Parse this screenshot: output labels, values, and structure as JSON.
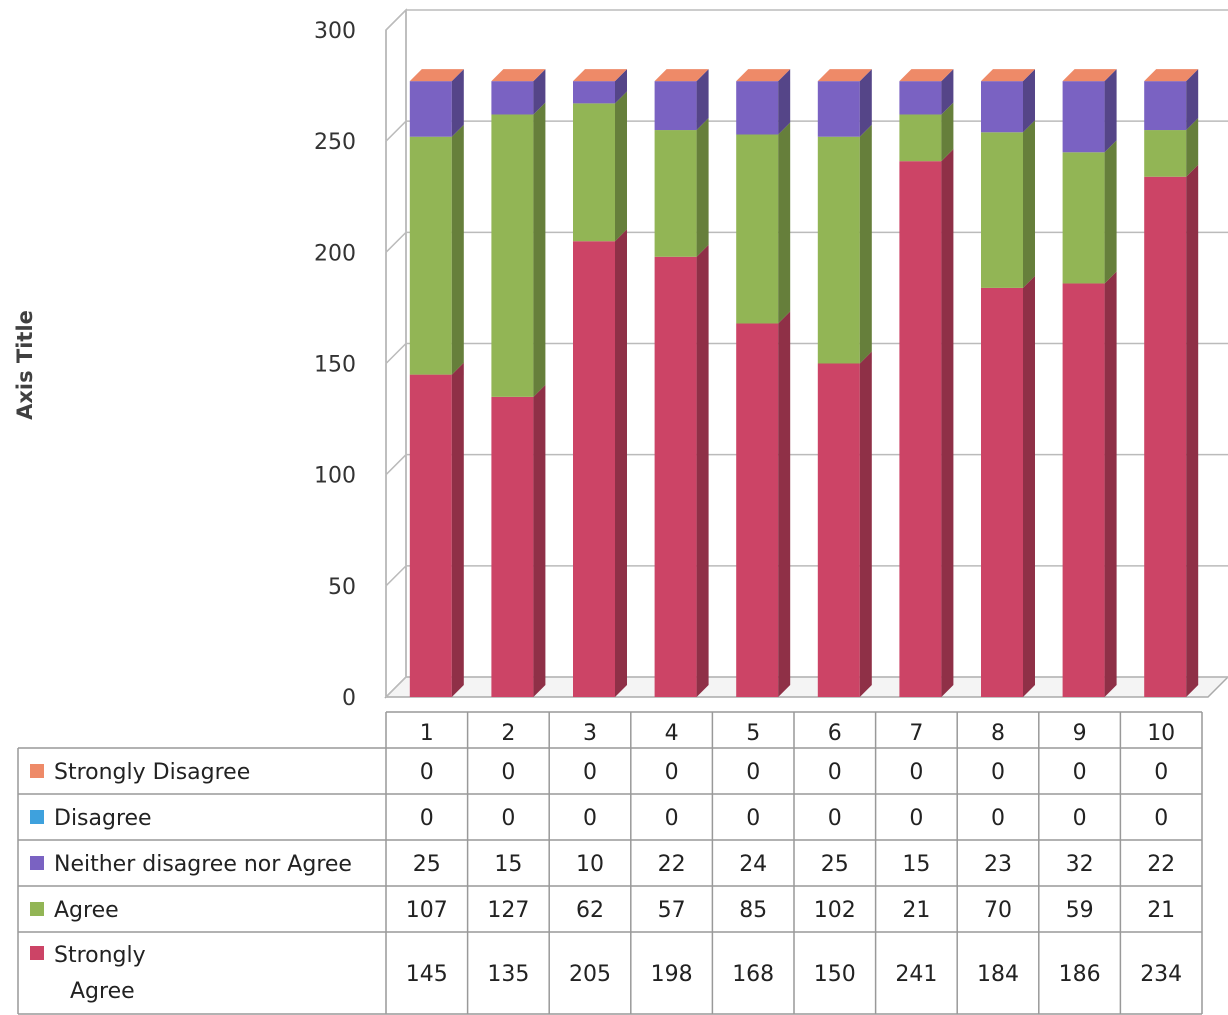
{
  "chart_data": {
    "type": "bar",
    "stacked": true,
    "three_d": true,
    "ylabel": "Axis Title",
    "ylim": [
      0,
      300
    ],
    "yticks": [
      0,
      50,
      100,
      150,
      200,
      250,
      300
    ],
    "categories": [
      "1",
      "2",
      "3",
      "4",
      "5",
      "6",
      "7",
      "8",
      "9",
      "10"
    ],
    "series": [
      {
        "name": "Strongly Agree",
        "label_lines": [
          "Strongly",
          "Agree"
        ],
        "color": "#cc4466",
        "values": [
          145,
          135,
          205,
          198,
          168,
          150,
          241,
          184,
          186,
          234
        ]
      },
      {
        "name": "Agree",
        "label_lines": [
          "Agree"
        ],
        "color": "#92b555",
        "values": [
          107,
          127,
          62,
          57,
          85,
          102,
          21,
          70,
          59,
          21
        ]
      },
      {
        "name": "Neither disagree nor Agree",
        "label_lines": [
          "Neither disagree nor Agree"
        ],
        "color": "#7a62c2",
        "values": [
          25,
          15,
          10,
          22,
          24,
          25,
          15,
          23,
          32,
          22
        ]
      },
      {
        "name": "Disagree",
        "label_lines": [
          "Disagree"
        ],
        "color": "#3ea1dd",
        "values": [
          0,
          0,
          0,
          0,
          0,
          0,
          0,
          0,
          0,
          0
        ]
      },
      {
        "name": "Strongly Disagree",
        "label_lines": [
          "Strongly Disagree"
        ],
        "color": "#ee8a68",
        "values": [
          0,
          0,
          0,
          0,
          0,
          0,
          0,
          0,
          0,
          0
        ]
      }
    ],
    "table_row_order": [
      "Strongly Disagree",
      "Disagree",
      "Neither disagree nor Agree",
      "Agree",
      "Strongly Agree"
    ],
    "legend": "data-table",
    "grid": true
  }
}
